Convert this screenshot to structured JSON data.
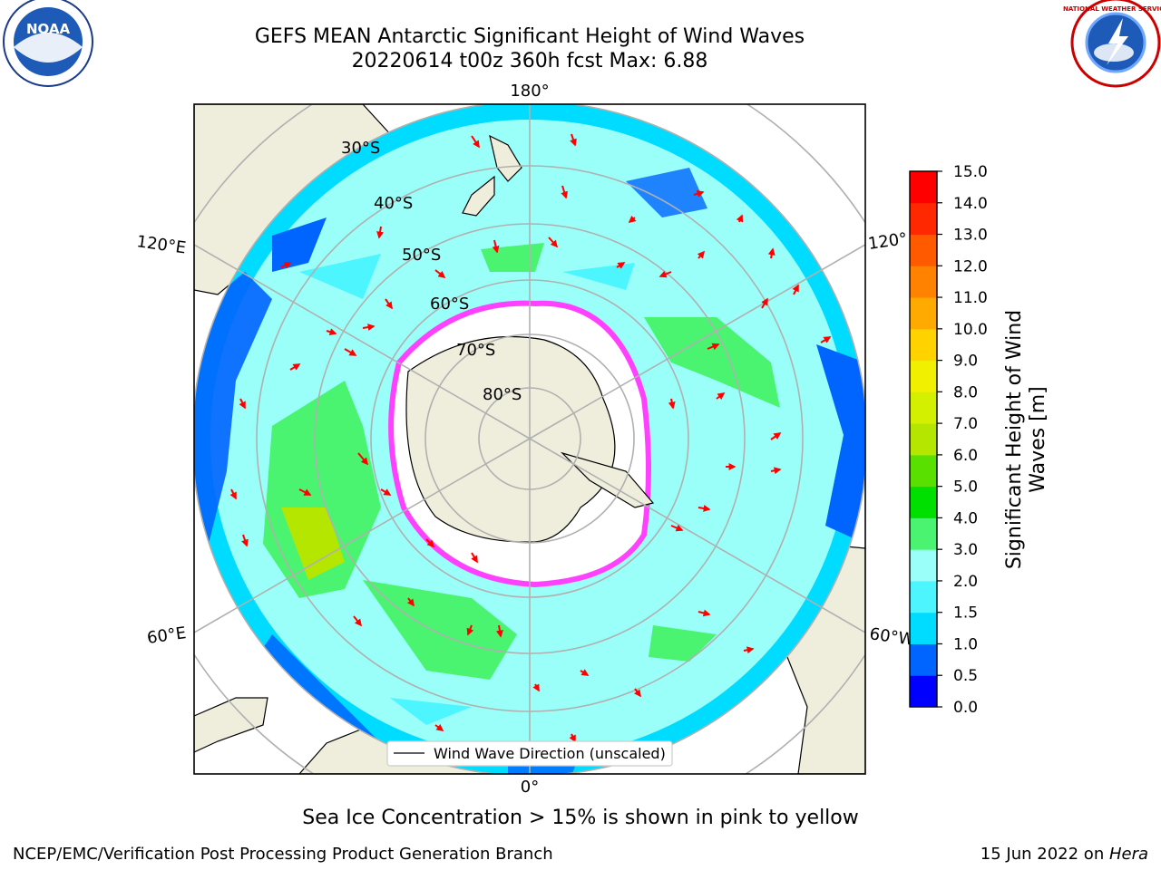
{
  "header": {
    "title": "GEFS MEAN Antarctic Significant Height of Wind Waves",
    "subtitle": "20220614 t00z 360h fcst   Max: 6.88"
  },
  "logos": {
    "left": {
      "text": "NOAA",
      "icon": "noaa-logo"
    },
    "right": {
      "text": "NATIONAL WEATHER SERVICE",
      "icon": "nws-logo"
    }
  },
  "map": {
    "longitude_labels": {
      "top": "180°",
      "bottom": "0°",
      "upper_left": "120°E",
      "upper_right": "120°",
      "lower_left": "60°E",
      "lower_right": "60°W"
    },
    "latitude_labels": [
      "30°S",
      "40°S",
      "50°S",
      "60°S",
      "70°S",
      "80°S"
    ],
    "legend_label": "Wind Wave Direction (unscaled)"
  },
  "colorbar": {
    "label_line1": "Significant Height of Wind",
    "label_line2": "Waves [m]",
    "ticks": [
      "0.0",
      "0.5",
      "1.0",
      "1.5",
      "2.0",
      "3.0",
      "4.0",
      "5.0",
      "6.0",
      "7.0",
      "8.0",
      "9.0",
      "10.0",
      "11.0",
      "12.0",
      "13.0",
      "14.0",
      "15.0"
    ],
    "colors": [
      "#0000ff",
      "#0064ff",
      "#00dcff",
      "#4cf5ff",
      "#9bfff9",
      "#4bf470",
      "#00e000",
      "#5ae000",
      "#b4e600",
      "#d2f000",
      "#f0f000",
      "#ffd200",
      "#ffaa00",
      "#ff8200",
      "#ff5a00",
      "#ff2800",
      "#ff0000"
    ]
  },
  "notes": {
    "sea_ice": "Sea Ice Concentration > 15% is shown in pink to yellow"
  },
  "footer": {
    "left": "NCEP/EMC/Verification Post Processing Product Generation Branch",
    "right_date": "15 Jun 2022 on ",
    "right_machine": "Hera"
  }
}
